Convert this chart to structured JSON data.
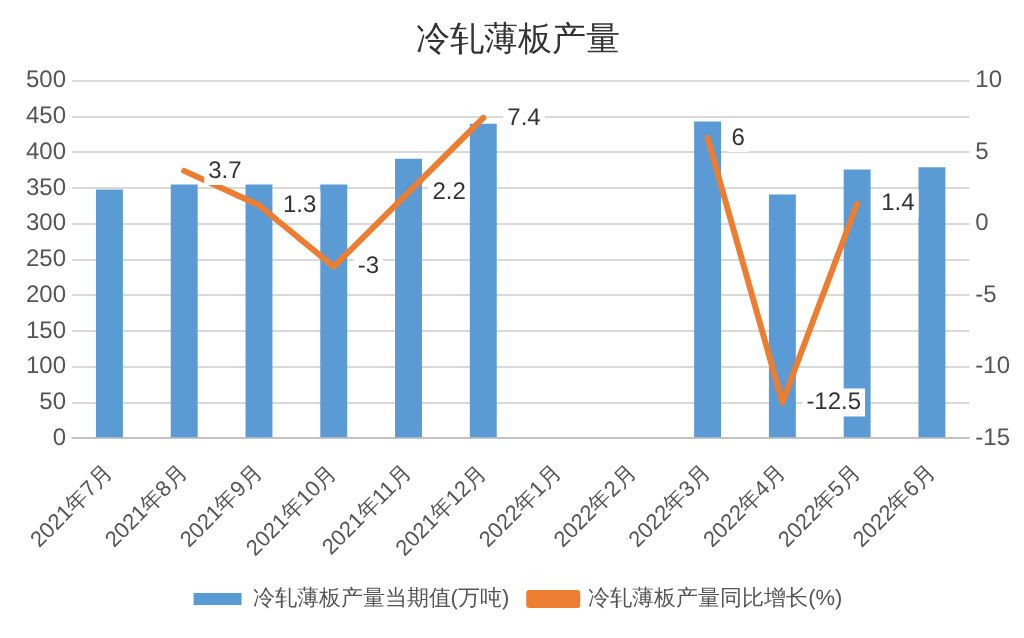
{
  "chart_data": {
    "type": "bar",
    "title": "冷轧薄板产量",
    "categories": [
      "2021年7月",
      "2021年8月",
      "2021年9月",
      "2021年10月",
      "2021年11月",
      "2021年12月",
      "2022年1月",
      "2022年2月",
      "2022年3月",
      "2022年4月",
      "2022年5月",
      "2022年6月"
    ],
    "series": [
      {
        "name": "冷轧薄板产量当期值(万吨)",
        "color": "#5b9bd5",
        "values": [
          348,
          355,
          355,
          355,
          391,
          440,
          null,
          null,
          443,
          341,
          376,
          379
        ]
      },
      {
        "name": "冷轧薄板产量同比增长(%)",
        "type": "line",
        "axis": "y2",
        "color": "#ed7d31",
        "values": [
          null,
          3.7,
          1.3,
          -3,
          2.2,
          7.4,
          null,
          null,
          6,
          -12.5,
          1.4,
          null
        ],
        "value_labels": [
          null,
          "3.7",
          "1.3",
          "-3",
          "2.2",
          "7.4",
          null,
          null,
          "6",
          "-12.5",
          "1.4",
          null
        ]
      }
    ],
    "ylim": [
      0,
      500
    ],
    "yticks": [
      0,
      50,
      100,
      150,
      200,
      250,
      300,
      350,
      400,
      450,
      500
    ],
    "y2lim": [
      -15,
      10
    ],
    "y2ticks": [
      -15,
      -10,
      -5,
      0,
      5,
      10
    ],
    "grid": "y",
    "legend": "bottom",
    "marker": "none",
    "line_style": "solid"
  }
}
